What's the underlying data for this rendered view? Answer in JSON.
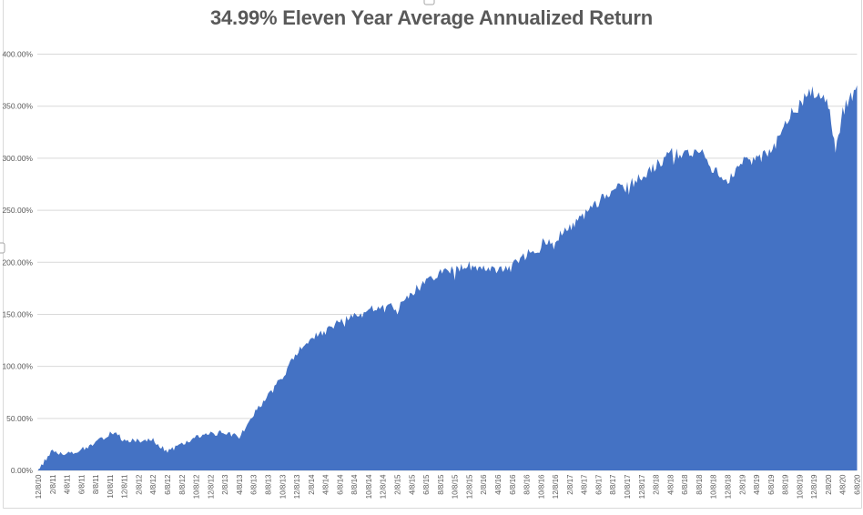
{
  "title": "34.99% Eleven Year Average Annualized Return",
  "colors": {
    "background": "#FFFFFF",
    "area": "#4472C4",
    "gridline": "#D9D9D9",
    "chart_border": "#D9D9D9",
    "axis_text": "#595959",
    "title_text": "#595959",
    "handle_fill": "#FFFFFF",
    "handle_border": "#A6A6A6"
  },
  "chart_data": {
    "type": "area",
    "title": "34.99% Eleven Year Average Annualized Return",
    "xlabel": "",
    "ylabel": "",
    "ylim": [
      0,
      400
    ],
    "grid": true,
    "legend": false,
    "y_tick_labels": [
      "400.00%",
      "350.00%",
      "300.00%",
      "250.00%",
      "200.00%",
      "150.00%",
      "100.00%",
      "50.00%",
      "0.00%"
    ],
    "y_tick_values": [
      400,
      350,
      300,
      250,
      200,
      150,
      100,
      50,
      0
    ],
    "categories": [
      "12/8/10",
      "2/8/11",
      "4/8/11",
      "6/8/11",
      "8/8/11",
      "10/8/11",
      "12/8/11",
      "2/8/12",
      "4/8/12",
      "6/8/12",
      "8/8/12",
      "10/8/12",
      "12/8/12",
      "2/8/13",
      "4/8/13",
      "6/8/13",
      "8/8/13",
      "10/8/13",
      "12/8/13",
      "2/8/14",
      "4/8/14",
      "6/8/14",
      "8/8/14",
      "10/8/14",
      "12/8/14",
      "2/8/15",
      "4/8/15",
      "6/8/15",
      "8/8/15",
      "10/8/15",
      "12/8/15",
      "2/8/16",
      "4/8/16",
      "6/8/16",
      "8/8/16",
      "10/8/16",
      "12/8/16",
      "2/8/17",
      "4/8/17",
      "6/8/17",
      "8/8/17",
      "10/8/17",
      "12/8/17",
      "2/8/18",
      "4/8/18",
      "6/8/18",
      "8/8/18",
      "10/8/18",
      "12/8/18",
      "2/8/19",
      "4/8/19",
      "6/8/19",
      "8/8/19",
      "10/8/19",
      "12/8/19",
      "2/8/20",
      "4/8/20",
      "6/8/20"
    ],
    "values": [
      1,
      19,
      16,
      20,
      26,
      36,
      28,
      29,
      29,
      18,
      25,
      32,
      35,
      37,
      32,
      55,
      72,
      90,
      113,
      127,
      133,
      143,
      148,
      155,
      158,
      156,
      171,
      181,
      190,
      194,
      197,
      193,
      194,
      197,
      207,
      218,
      223,
      232,
      245,
      258,
      269,
      273,
      282,
      293,
      305,
      304,
      308,
      288,
      280,
      295,
      299,
      305,
      334,
      353,
      364,
      352,
      345,
      370
    ],
    "dip_points": [
      {
        "x_index": 5.3,
        "value": 37.5
      },
      {
        "x_index": 55.5,
        "value": 305
      }
    ],
    "noise": {
      "seed": 13,
      "base_amp": 2.0,
      "rel_amp": 0.013,
      "spike_prob": 0.07,
      "points_per_interval": 9
    }
  }
}
